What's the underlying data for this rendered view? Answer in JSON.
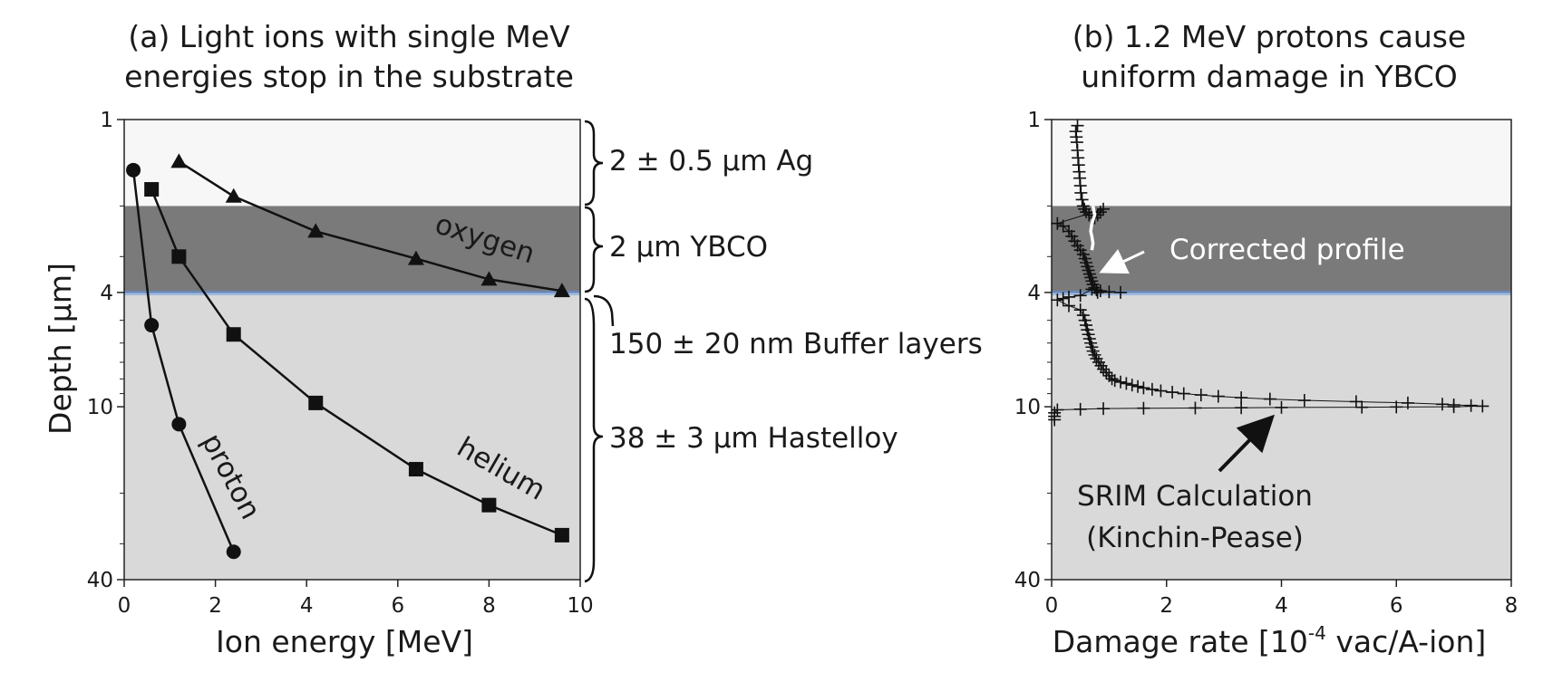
{
  "chart_data": [
    {
      "type": "line",
      "title": "(a) Light ions with single MeV\nenergies stop in the substrate",
      "xlabel": "Ion energy [MeV]",
      "ylabel": "Depth [μm]",
      "xlim": [
        0,
        10
      ],
      "ylim": [
        1,
        40
      ],
      "y_scale": "log",
      "y_inverted": true,
      "xticks": [
        "0",
        "2",
        "4",
        "6",
        "8",
        "10"
      ],
      "yticks": [
        "1",
        "4",
        "10",
        "40"
      ],
      "layers": [
        {
          "name": "Ag",
          "from": 1,
          "to": 2,
          "color": "#f7f7f7"
        },
        {
          "name": "YBCO",
          "from": 2,
          "to": 3.95,
          "color": "#7a7a7a"
        },
        {
          "name": "Buffer",
          "from": 3.95,
          "to": 4.1,
          "color": "#9fb8d8"
        },
        {
          "name": "Hastelloy",
          "from": 4.1,
          "to": 40,
          "color": "#d9d9d9"
        }
      ],
      "layer_labels": [
        "2 ± 0.5 μm Ag",
        "2 μm YBCO",
        "150 ± 20 nm Buffer layers",
        "38 ± 3 μm Hastelloy"
      ],
      "series": [
        {
          "name": "proton",
          "marker": "circle",
          "x": [
            0.2,
            0.6,
            1.2,
            2.4
          ],
          "y": [
            1.5,
            5.2,
            11.5,
            32
          ]
        },
        {
          "name": "helium",
          "marker": "square",
          "x": [
            0.6,
            1.2,
            2.4,
            4.2,
            6.4,
            8.0,
            9.6
          ],
          "y": [
            1.75,
            3.0,
            5.6,
            9.7,
            16.5,
            22,
            28
          ]
        },
        {
          "name": "oxygen",
          "marker": "triangle",
          "x": [
            1.2,
            2.4,
            4.2,
            6.4,
            8.0,
            9.6
          ],
          "y": [
            1.4,
            1.85,
            2.45,
            3.05,
            3.6,
            3.95
          ]
        }
      ]
    },
    {
      "type": "line",
      "title": "(b) 1.2 MeV protons cause\nuniform damage in YBCO",
      "xlabel_main": "Damage rate [10",
      "xlabel_sup": "-4",
      "xlabel_tail": " vac/A-ion]",
      "ylabel": "",
      "xlim": [
        0,
        8
      ],
      "ylim": [
        1,
        40
      ],
      "y_scale": "log",
      "y_inverted": true,
      "xticks": [
        "0",
        "2",
        "4",
        "6",
        "8"
      ],
      "yticks": [
        "1",
        "4",
        "10",
        "40"
      ],
      "annotations": [
        "Corrected profile",
        "SRIM Calculation",
        "(Kinchin-Pease)"
      ],
      "series": [
        {
          "name": "SRIM Calculation (Kinchin-Pease)",
          "marker": "plus",
          "x": [
            0.45,
            0.42,
            0.43,
            0.44,
            0.45,
            0.46,
            0.47,
            0.48,
            0.49,
            0.5,
            0.51,
            0.53,
            0.55,
            0.57,
            0.6,
            0.65,
            0.75,
            0.8,
            0.85,
            0.9,
            0.1,
            0.2,
            0.3,
            0.35,
            0.4,
            0.45,
            0.5,
            0.55,
            0.58,
            0.6,
            0.62,
            0.64,
            0.66,
            0.68,
            0.7,
            0.72,
            0.75,
            0.78,
            0.8,
            1.2,
            1.0,
            0.85,
            0.7,
            0.5,
            0.3,
            0.2,
            0.1,
            0.3,
            0.5,
            0.55,
            0.58,
            0.6,
            0.62,
            0.64,
            0.66,
            0.68,
            0.7,
            0.72,
            0.75,
            0.78,
            0.82,
            0.86,
            0.9,
            0.95,
            1.0,
            1.05,
            1.1,
            1.2,
            1.3,
            1.4,
            1.5,
            1.6,
            1.75,
            1.9,
            2.1,
            2.3,
            2.6,
            2.9,
            3.3,
            3.8,
            4.4,
            5.3,
            6.2,
            6.8,
            7.0,
            7.3,
            7.5,
            7.0,
            6.0,
            5.4,
            4.0,
            3.3,
            2.5,
            1.6,
            0.9,
            0.5,
            0.1,
            0.05,
            0.05,
            0.05
          ],
          "y": [
            1.05,
            1.1,
            1.15,
            1.2,
            1.28,
            1.36,
            1.44,
            1.52,
            1.6,
            1.7,
            1.8,
            1.9,
            2.0,
            2.05,
            2.1,
            2.15,
            2.2,
            2.15,
            2.1,
            2.05,
            2.3,
            2.35,
            2.45,
            2.55,
            2.65,
            2.75,
            2.85,
            2.95,
            3.05,
            3.15,
            3.25,
            3.35,
            3.45,
            3.55,
            3.65,
            3.75,
            3.85,
            3.92,
            4.0,
            4.0,
            3.98,
            3.95,
            3.9,
            4.1,
            4.15,
            4.2,
            4.25,
            4.45,
            4.6,
            4.8,
            5.0,
            5.2,
            5.4,
            5.6,
            5.8,
            6.0,
            6.2,
            6.4,
            6.6,
            6.8,
            7.0,
            7.2,
            7.4,
            7.6,
            7.8,
            8.0,
            8.1,
            8.2,
            8.3,
            8.4,
            8.5,
            8.6,
            8.7,
            8.8,
            8.9,
            9.0,
            9.1,
            9.2,
            9.3,
            9.4,
            9.5,
            9.6,
            9.7,
            9.8,
            9.85,
            9.9,
            9.95,
            10.0,
            10.02,
            10.04,
            10.06,
            10.08,
            10.1,
            10.12,
            10.15,
            10.2,
            10.25,
            10.5,
            10.8,
            11.1
          ]
        },
        {
          "name": "Corrected profile",
          "marker": "none",
          "color": "#ffffff",
          "x": [
            0.72,
            0.75,
            0.7,
            0.68,
            0.7,
            0.72,
            0.7
          ],
          "y": [
            2.0,
            2.15,
            2.3,
            2.45,
            2.55,
            2.7,
            2.85
          ]
        }
      ]
    }
  ]
}
